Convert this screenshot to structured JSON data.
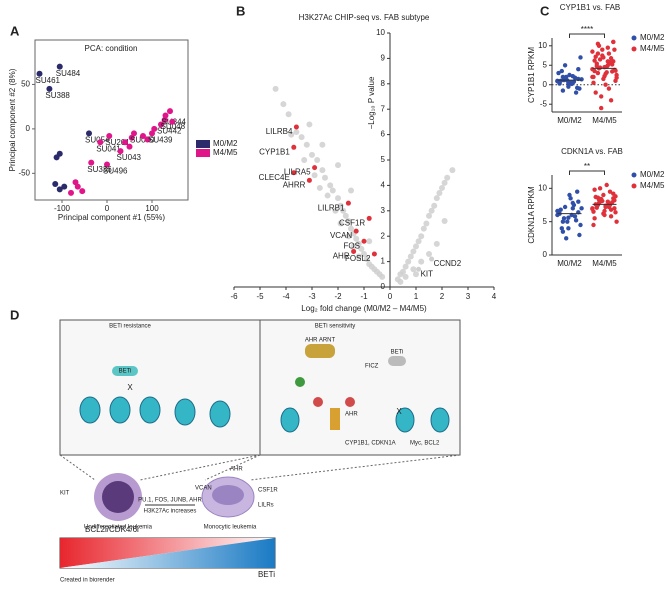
{
  "panel_labels": [
    "A",
    "B",
    "C",
    "D"
  ],
  "chart_data": [
    {
      "type": "scatter",
      "title": "PCA: condition",
      "xlabel": "Principal component #1 (55%)",
      "ylabel": "Principal component #2 (8%)",
      "xlim": [
        -160,
        180
      ],
      "ylim": [
        -80,
        100
      ],
      "xticks": [
        -100,
        0,
        100
      ],
      "yticks": [
        -50,
        0,
        50
      ],
      "series": [
        {
          "name": "M0/M2",
          "color": "#2b2a6b",
          "x": [
            -150,
            -105,
            -128,
            -40,
            -105,
            -112,
            -95,
            -105,
            -115
          ],
          "y": [
            62,
            70,
            45,
            -5,
            -28,
            -32,
            -65,
            -68,
            -62
          ],
          "labels": [
            "SU461",
            "SU484",
            "SU388",
            "SU054",
            null,
            null,
            null,
            null,
            null
          ]
        },
        {
          "name": "M4/M5",
          "color": "#e0158a",
          "x": [
            -15,
            5,
            0,
            -70,
            -65,
            -80,
            -55,
            -35,
            30,
            50,
            55,
            60,
            80,
            90,
            100,
            105,
            120,
            128,
            130,
            140,
            145,
            40
          ],
          "y": [
            -15,
            -8,
            -40,
            -60,
            -65,
            -72,
            -70,
            -38,
            -25,
            -20,
            -10,
            -5,
            -8,
            -12,
            -5,
            0,
            5,
            10,
            15,
            20,
            8,
            -15
          ],
          "labels": [
            "SU041",
            "SU201",
            "SU496",
            null,
            null,
            null,
            null,
            "SU336",
            "SU043",
            null,
            null,
            "SU070",
            null,
            null,
            "SU439",
            null,
            "SU442",
            "SU048",
            "SU344",
            null,
            null,
            null
          ]
        }
      ]
    },
    {
      "type": "volcano",
      "title": "H3K27Ac CHIP-seq vs. FAB subtype",
      "xlabel": "Log₂ fold change (M0/M2 – M4/M5)",
      "ylabel": "−Log₁₀ P value",
      "xlim": [
        -6,
        4
      ],
      "ylim": [
        0,
        10
      ],
      "xticks": [
        -6,
        -5,
        -4,
        -3,
        -2,
        -1,
        0,
        1,
        2,
        3,
        4
      ],
      "yticks": [
        0,
        1,
        2,
        3,
        4,
        5,
        6,
        7,
        8,
        9,
        10
      ],
      "points": {
        "color": "#cfcfcf",
        "x": [
          -4.4,
          -4.1,
          -3.9,
          -3.6,
          -3.4,
          -3.2,
          -3.0,
          -2.8,
          -2.6,
          -2.5,
          -2.3,
          -2.2,
          -2.0,
          -1.9,
          -1.8,
          -1.7,
          -1.6,
          -1.5,
          -1.4,
          -1.3,
          -1.2,
          -1.1,
          -1.0,
          -0.9,
          -0.8,
          -0.7,
          -0.6,
          -0.5,
          -0.4,
          -3.8,
          -3.3,
          -2.9,
          -2.7,
          -2.4,
          -2.1,
          -1.9,
          -1.6,
          -1.4,
          -1.2,
          -3.1,
          -2.6,
          -2.0,
          -1.5,
          -0.8,
          -0.3,
          0.3,
          0.4,
          0.5,
          0.6,
          0.7,
          0.8,
          0.9,
          1.0,
          1.1,
          1.2,
          1.3,
          1.4,
          1.5,
          1.6,
          1.7,
          1.8,
          1.9,
          2.0,
          2.1,
          2.2,
          2.4,
          0.6,
          0.9,
          1.2,
          1.5,
          1.8,
          2.1,
          0.4,
          1.0
        ],
        "y": [
          7.8,
          7.2,
          6.8,
          6.1,
          5.9,
          5.6,
          5.2,
          5.0,
          4.6,
          4.3,
          4.0,
          3.8,
          3.5,
          3.2,
          3.0,
          2.8,
          2.6,
          2.3,
          2.1,
          1.9,
          1.7,
          1.5,
          1.3,
          1.1,
          0.9,
          0.8,
          0.7,
          0.6,
          0.5,
          6.0,
          5.0,
          4.4,
          3.9,
          3.6,
          3.0,
          2.5,
          2.0,
          1.6,
          1.2,
          6.4,
          5.6,
          4.8,
          3.8,
          1.8,
          0.4,
          0.3,
          0.5,
          0.6,
          0.8,
          1.0,
          1.2,
          1.4,
          1.6,
          1.8,
          2.0,
          2.3,
          2.5,
          2.8,
          3.0,
          3.2,
          3.5,
          3.7,
          3.9,
          4.1,
          4.3,
          4.6,
          0.4,
          0.7,
          1.0,
          1.3,
          1.7,
          2.6,
          0.2,
          0.5
        ]
      },
      "highlighted": {
        "color": "#e0303a",
        "labels": [
          "LILRB4",
          "CYP1B1",
          "CLEC4E",
          "LILRA5",
          "AHRR",
          "LILRB1",
          "CSF1R",
          "VCAN",
          "FOS",
          "AHR",
          "FOSL2",
          "CCND2",
          "KIT"
        ],
        "x": [
          -3.6,
          -3.7,
          -3.7,
          -2.9,
          -3.1,
          -1.6,
          -0.8,
          -1.3,
          -1.0,
          -1.4,
          -0.6,
          1.6,
          1.1
        ],
        "y": [
          6.3,
          5.5,
          4.5,
          4.7,
          4.2,
          3.3,
          2.7,
          2.2,
          1.8,
          1.4,
          1.3,
          1.1,
          0.7
        ]
      }
    },
    {
      "type": "strip",
      "title": "CYP1B1 vs. FAB",
      "ylabel": "CYP1B1 RPKM",
      "categories": [
        "M0/M2",
        "M4/M5"
      ],
      "significance": "****",
      "ylim": [
        -7,
        12
      ],
      "yticks": [
        -5,
        0,
        5,
        10
      ],
      "zero_line": true,
      "series": [
        {
          "name": "M0/M2",
          "color": "#2f4fa8",
          "mean": 1.2,
          "values": [
            1,
            0.5,
            2,
            1.5,
            -0.5,
            3,
            0.8,
            1.2,
            -1,
            2.5,
            0.3,
            1.8,
            5,
            7,
            0.6,
            1,
            -2,
            2,
            1.4,
            0.2,
            3.5,
            -0.8,
            1.1,
            0.9,
            2.2,
            -1.5,
            4,
            0.4
          ]
        },
        {
          "name": "M4/M5",
          "color": "#e0303a",
          "mean": 4.2,
          "values": [
            4,
            5,
            3,
            6,
            7,
            2,
            8,
            10,
            9,
            4.5,
            3.5,
            5.5,
            6.5,
            1,
            0,
            -2,
            -4,
            -6,
            2.5,
            3.2,
            4.8,
            5.2,
            7.5,
            8.5,
            9.5,
            10.5,
            11,
            1.5,
            0.5,
            -1,
            4.2,
            3.8,
            2.2,
            6.2,
            5.8,
            4.4,
            3.6,
            2.8,
            7.2,
            6.8,
            -3,
            1.8,
            4.6,
            5.4,
            3.4,
            9,
            2,
            6,
            8,
            11
          ]
        }
      ]
    },
    {
      "type": "strip",
      "title": "CDKN1A vs. FAB",
      "ylabel": "CDKN1A RPKM",
      "categories": [
        "M0/M2",
        "M4/M5"
      ],
      "significance": "**",
      "ylim": [
        0,
        12
      ],
      "yticks": [
        0,
        5,
        10
      ],
      "zero_line": false,
      "series": [
        {
          "name": "M0/M2",
          "color": "#2f4fa8",
          "mean": 6.2,
          "values": [
            6,
            7,
            5,
            8,
            4,
            6.5,
            7.5,
            5.5,
            3,
            9,
            6.2,
            5.8,
            7.2,
            4.5,
            8.5,
            6.8,
            5.2,
            2.5,
            7,
            6,
            4,
            9.5,
            5,
            6.6,
            7.8,
            3.5,
            6.4,
            5.6
          ]
        },
        {
          "name": "M4/M5",
          "color": "#e0303a",
          "mean": 7.6,
          "values": [
            7,
            8,
            7.5,
            8.5,
            9,
            6.5,
            7.2,
            7.8,
            8.2,
            6,
            5.5,
            9.5,
            10,
            8.8,
            7.4,
            7.6,
            6.8,
            8.4,
            5,
            10.5,
            7.1,
            7.9,
            8.1,
            6.9,
            7.3,
            8.6,
            9.2,
            6.2,
            4.5,
            7.7,
            8.3,
            7,
            6.6,
            9.8,
            7.5,
            8,
            6.4,
            7.2,
            8.7,
            5.8
          ]
        }
      ]
    }
  ],
  "diagram": {
    "left_title": "BETi resistance",
    "right_title": "BETi sensitivity",
    "beti_left": "BETi",
    "ahr_arnt": "AHR ARNT",
    "ficz": "FICZ",
    "beti_right": "BETi",
    "ahr": "AHR",
    "targets": "CYP1B1, CDKN1A",
    "myc": "Myc, BCL2",
    "kit": "KIT",
    "undiff": "Undifferentiated leukemia",
    "tfs": "PU.1, FOS, JUNB, AHR",
    "h3k27": "H3K27Ac increases",
    "mono": "Monocytic leukemia",
    "vcan": "VCAN",
    "ahr2": "AHR",
    "csf1r": "CSF1R",
    "lilrs": "LILRs",
    "gradient_left": "BCL2i/CDK4/6i",
    "gradient_right": "BETi",
    "credit": "Created in biorender"
  }
}
